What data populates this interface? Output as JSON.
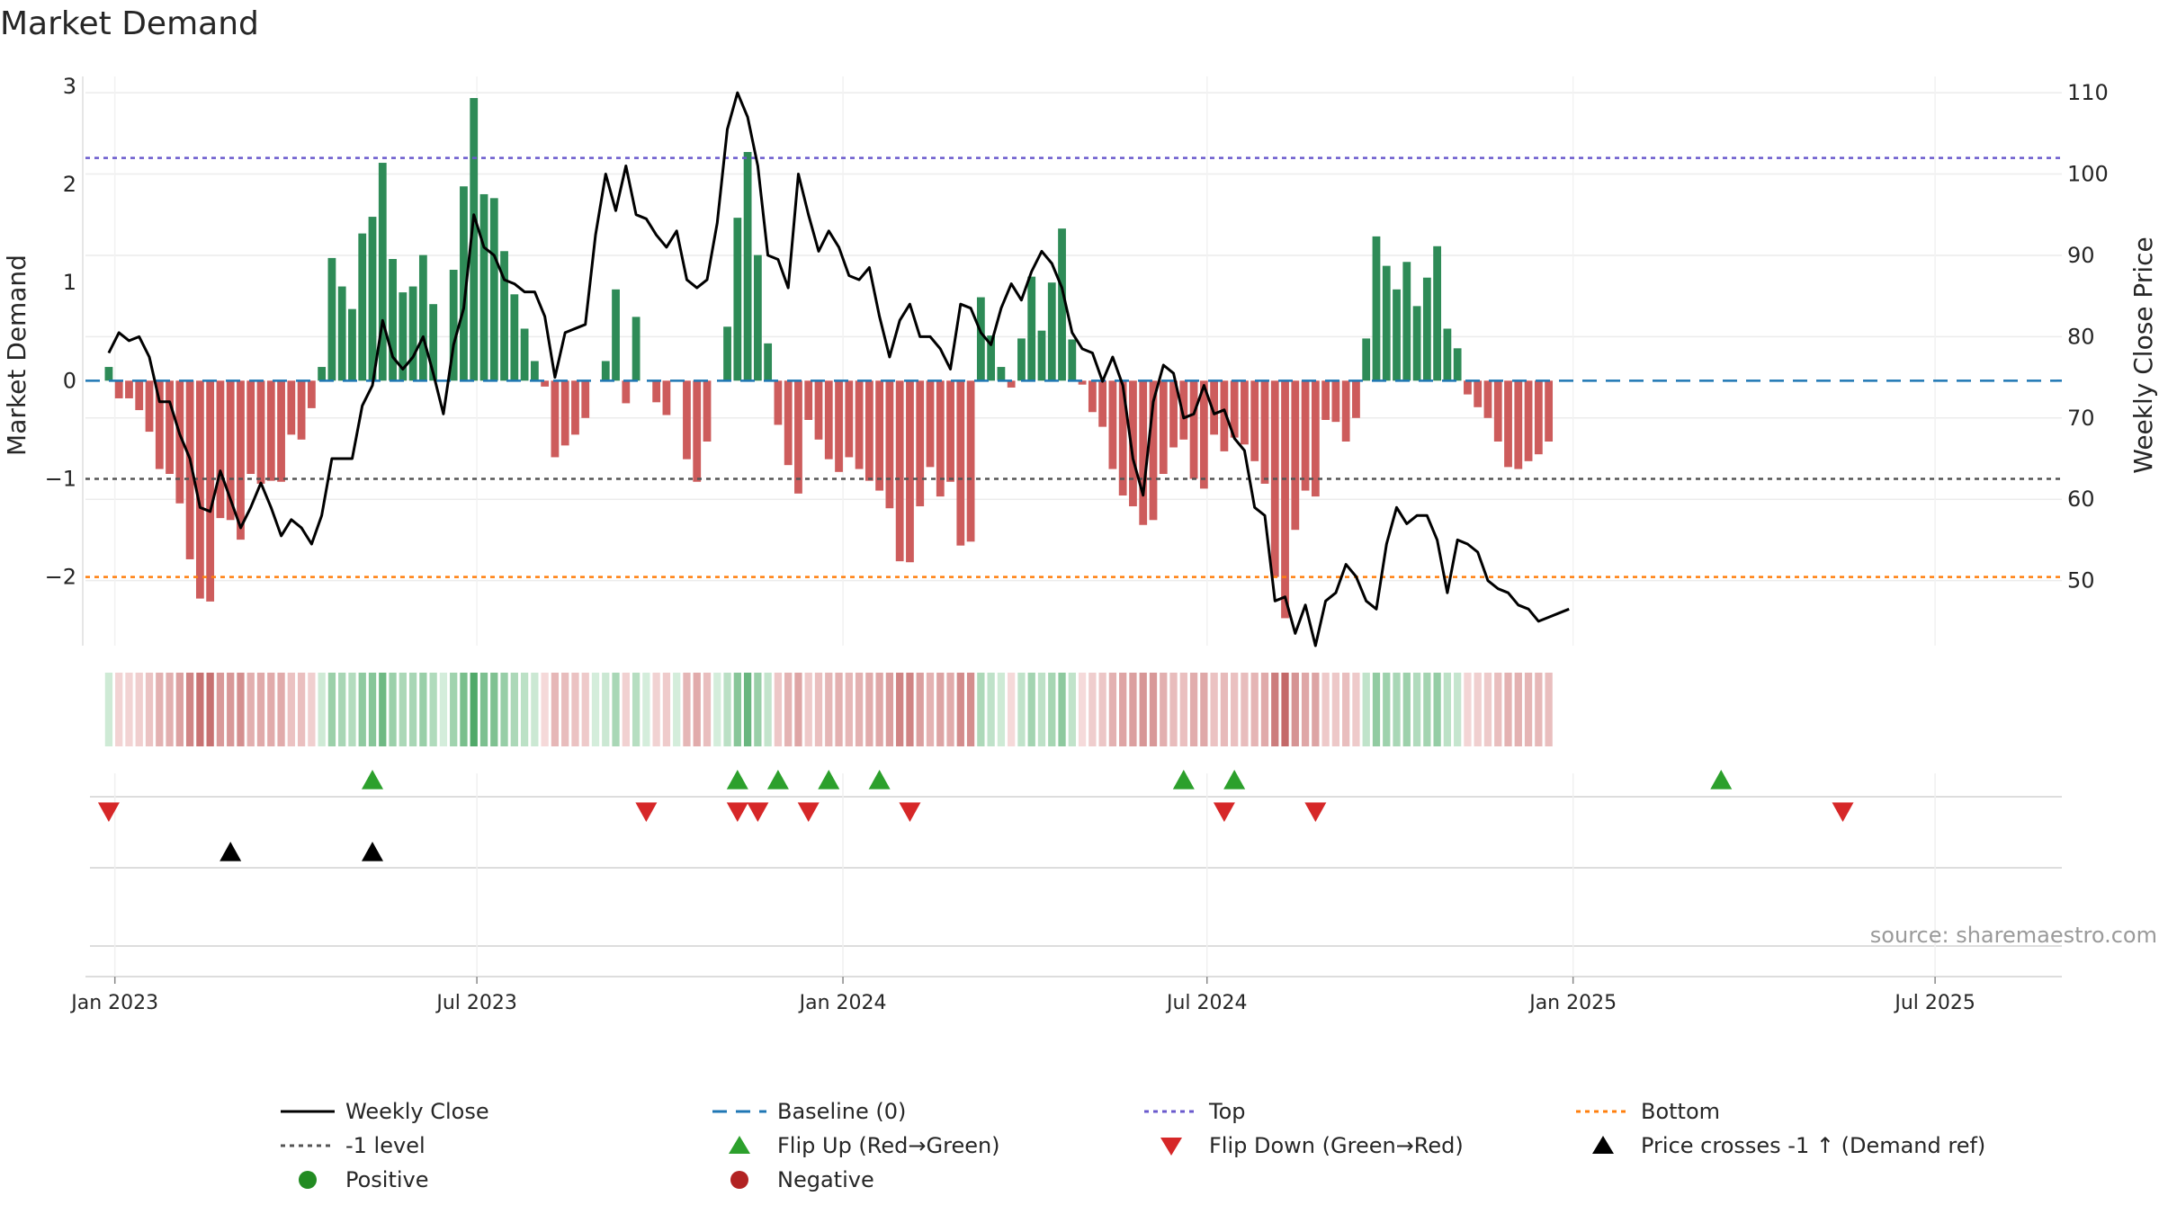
{
  "chart_data": {
    "type": "bar+line",
    "title": "Market Demand",
    "ylabel_left": "Market Demand",
    "ylabel_right": "Weekly Close Price",
    "source": "source: sharemaestro.com",
    "ylim_left": [
      -2.7,
      3.1
    ],
    "ylim_right": [
      42,
      112
    ],
    "yticks_left": [
      3,
      2,
      1,
      0,
      -1,
      -2
    ],
    "ytick_labels_left": [
      "3",
      "2",
      "1",
      "0",
      "−1",
      "−2"
    ],
    "yticks_right": [
      110,
      100,
      90,
      80,
      70,
      60,
      50
    ],
    "reference_lines": {
      "top": 2.27,
      "minus_one": -1,
      "bottom": -2
    },
    "x_range_weeks": [
      -2.3,
      192.6
    ],
    "date_ticks": [
      {
        "label": "Jan 2023",
        "week": 0.6
      },
      {
        "label": "Jul 2023",
        "week": 36.3
      },
      {
        "label": "Jan 2024",
        "week": 72.4
      },
      {
        "label": "Jul 2024",
        "week": 108.3
      },
      {
        "label": "Jan 2025",
        "week": 144.4
      },
      {
        "label": "Jul 2025",
        "week": 180.1
      }
    ],
    "demand": [
      0.14,
      -0.18,
      -0.18,
      -0.3,
      -0.52,
      -0.9,
      -0.95,
      -1.25,
      -1.82,
      -2.22,
      -2.25,
      -1.4,
      -1.42,
      -1.62,
      -0.95,
      -1.05,
      -1.02,
      -1.03,
      -0.55,
      -0.6,
      -0.28,
      0.14,
      1.25,
      0.96,
      0.73,
      1.5,
      1.67,
      2.22,
      1.24,
      0.9,
      0.96,
      1.28,
      0.78,
      0.0,
      1.13,
      1.98,
      2.88,
      1.9,
      1.86,
      1.32,
      0.88,
      0.53,
      0.2,
      -0.06,
      -0.78,
      -0.66,
      -0.55,
      -0.38,
      0.0,
      0.2,
      0.93,
      -0.23,
      0.65,
      0.0,
      -0.22,
      -0.35,
      0.0,
      -0.8,
      -1.03,
      -0.62,
      0.0,
      0.55,
      1.66,
      2.33,
      1.28,
      0.38,
      -0.45,
      -0.86,
      -1.15,
      -0.4,
      -0.6,
      -0.8,
      -0.93,
      -0.78,
      -0.9,
      -1.02,
      -1.12,
      -1.3,
      -1.84,
      -1.85,
      -1.28,
      -0.88,
      -1.18,
      -1.03,
      -1.68,
      -1.64,
      0.85,
      0.46,
      0.14,
      -0.07,
      0.43,
      1.06,
      0.51,
      1.0,
      1.55,
      0.42,
      -0.04,
      -0.32,
      -0.47,
      -0.9,
      -1.17,
      -1.28,
      -1.47,
      -1.42,
      -0.95,
      -0.68,
      -0.6,
      -1.0,
      -1.1,
      -0.55,
      -0.72,
      -0.58,
      -0.65,
      -0.82,
      -1.05,
      -2.0,
      -2.42,
      -1.52,
      -1.12,
      -1.18,
      -0.4,
      -0.42,
      -0.62,
      -0.38,
      0.43,
      1.47,
      1.17,
      0.93,
      1.21,
      0.76,
      1.05,
      1.37,
      0.53,
      0.33,
      -0.14,
      -0.27,
      -0.38,
      -0.62,
      -0.88,
      -0.9,
      -0.82,
      -0.75,
      -0.62
    ],
    "close": [
      78,
      80.5,
      79.5,
      80,
      77.5,
      72,
      72,
      68,
      65,
      59,
      58.5,
      63.5,
      60,
      56.5,
      59,
      62,
      59,
      55.5,
      57.5,
      56.5,
      54.5,
      58,
      65,
      65,
      65,
      71.5,
      74,
      82,
      77.5,
      76,
      77.5,
      80,
      75.5,
      70.5,
      79,
      83.5,
      95,
      91,
      90,
      87,
      86.5,
      85.5,
      85.5,
      82.5,
      75,
      80.5,
      81,
      81.5,
      92.5,
      100,
      95.5,
      101,
      95,
      94.5,
      92.5,
      91,
      93,
      87,
      86,
      87,
      94,
      105.5,
      110,
      107,
      101,
      90,
      89.5,
      86,
      100,
      95,
      90.5,
      93,
      91,
      87.5,
      87,
      88.5,
      82.5,
      77.5,
      82,
      84,
      80,
      80,
      78.5,
      76,
      84,
      83.5,
      80.5,
      79,
      83.5,
      86.5,
      84.5,
      88,
      90.5,
      89,
      86,
      80.5,
      78.5,
      78,
      74.5,
      77.5,
      74,
      65,
      60.5,
      72,
      76.5,
      75.5,
      70,
      70.5,
      74,
      70.5,
      71,
      67.5,
      66,
      59,
      58,
      47.5,
      48,
      43.5,
      47,
      42,
      47.5,
      48.5,
      52,
      50.5,
      47.5,
      46.5,
      54.5,
      59,
      57,
      58,
      58,
      55,
      48.5,
      55,
      54.5,
      53.5,
      50,
      49,
      48.5,
      47,
      46.5,
      45,
      45.5,
      46,
      46.5
    ],
    "markers": {
      "flip_up_weeks": [
        26,
        62,
        66,
        71,
        76,
        106,
        111,
        159
      ],
      "flip_down_weeks": [
        0,
        53,
        62,
        64,
        69,
        79,
        110,
        119,
        171
      ],
      "price_cross_weeks": [
        12,
        26
      ]
    },
    "legend": [
      {
        "label": "Weekly Close",
        "kind": "line",
        "color": "#000000"
      },
      {
        "label": "Baseline (0)",
        "kind": "dash",
        "color": "#1f77b4"
      },
      {
        "label": "Top",
        "kind": "dot",
        "color": "#6a5acd"
      },
      {
        "label": "Bottom",
        "kind": "dot",
        "color": "#ff7f0e"
      },
      {
        "label": "-1 level",
        "kind": "dot",
        "color": "#555555"
      },
      {
        "label": "Flip Up (Red→Green)",
        "kind": "tri-up",
        "color": "#2ca02c"
      },
      {
        "label": "Flip Down (Green→Red)",
        "kind": "tri-down",
        "color": "#d62728"
      },
      {
        "label": "Price crosses -1 ↑ (Demand ref)",
        "kind": "tri-up",
        "color": "#000000"
      },
      {
        "label": "Positive",
        "kind": "dot-marker",
        "color": "#228b22"
      },
      {
        "label": "Negative",
        "kind": "dot-marker",
        "color": "#b22222"
      }
    ],
    "colors": {
      "positive": "#2e8b57",
      "negative": "#cd5c5c",
      "price": "#000000"
    }
  }
}
